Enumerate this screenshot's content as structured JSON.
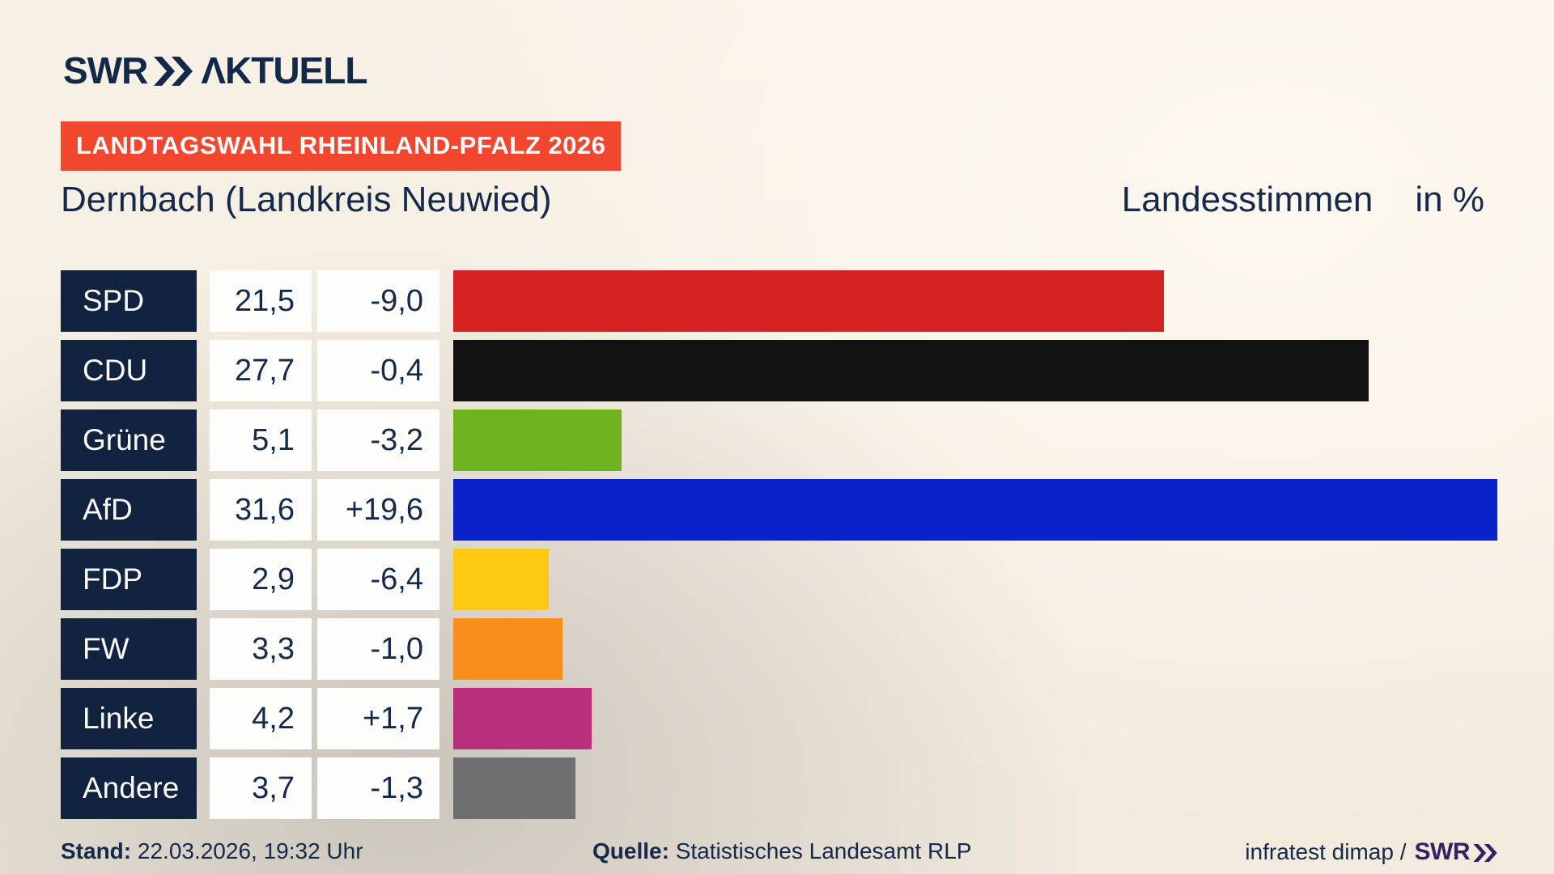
{
  "header": {
    "brand_swr": "SWR",
    "brand_aktuell": "ΛKTUELL",
    "badge": "LANDTAGSWAHL RHEINLAND-PFALZ 2026",
    "title": "Dernbach (Landkreis Neuwied)",
    "measure_label": "Landesstimmen",
    "unit_label": "in %"
  },
  "chart_data": {
    "type": "bar",
    "orientation": "horizontal",
    "title": "Dernbach (Landkreis Neuwied)",
    "value_axis_label": "Landesstimmen in %",
    "xlim": [
      0,
      31.6
    ],
    "grid": false,
    "legend": false,
    "categories": [
      "SPD",
      "CDU",
      "Grüne",
      "AfD",
      "FDP",
      "FW",
      "Linke",
      "Andere"
    ],
    "values": [
      21.5,
      27.7,
      5.1,
      31.6,
      2.9,
      3.3,
      4.2,
      3.7
    ],
    "diffs": [
      -9.0,
      -0.4,
      -3.2,
      19.6,
      -6.4,
      -1.0,
      1.7,
      -1.3
    ],
    "rows": [
      {
        "party": "SPD",
        "value": 21.5,
        "value_label": "21,5",
        "diff_label": "-9,0",
        "color": "#d42222"
      },
      {
        "party": "CDU",
        "value": 27.7,
        "value_label": "27,7",
        "diff_label": "-0,4",
        "color": "#121212"
      },
      {
        "party": "Grüne",
        "value": 5.1,
        "value_label": "5,1",
        "diff_label": "-3,2",
        "color": "#6db41e"
      },
      {
        "party": "AfD",
        "value": 31.6,
        "value_label": "31,6",
        "diff_label": "+19,6",
        "color": "#0b22cb"
      },
      {
        "party": "FDP",
        "value": 2.9,
        "value_label": "2,9",
        "diff_label": "-6,4",
        "color": "#fdc913"
      },
      {
        "party": "FW",
        "value": 3.3,
        "value_label": "3,3",
        "diff_label": "-1,0",
        "color": "#f88d1a"
      },
      {
        "party": "Linke",
        "value": 4.2,
        "value_label": "4,2",
        "diff_label": "+1,7",
        "color": "#b82f7d"
      },
      {
        "party": "Andere",
        "value": 3.7,
        "value_label": "3,7",
        "diff_label": "-1,3",
        "color": "#6f6f71"
      }
    ]
  },
  "footer": {
    "stand_label": "Stand:",
    "stand_value": "22.03.2026, 19:32 Uhr",
    "quelle_label": "Quelle:",
    "quelle_value": "Statistisches Landesamt RLP",
    "credit_text": "infratest dimap /",
    "credit_brand": "SWR"
  },
  "colors": {
    "background_cream": "#f8f1e6",
    "background_gray": "#d7d3cd",
    "navy_box": "#12233f",
    "text_navy": "#14294b",
    "badge_red": "#f1472f",
    "white_box": "#fdfdfc",
    "brand_purple": "#362063"
  }
}
